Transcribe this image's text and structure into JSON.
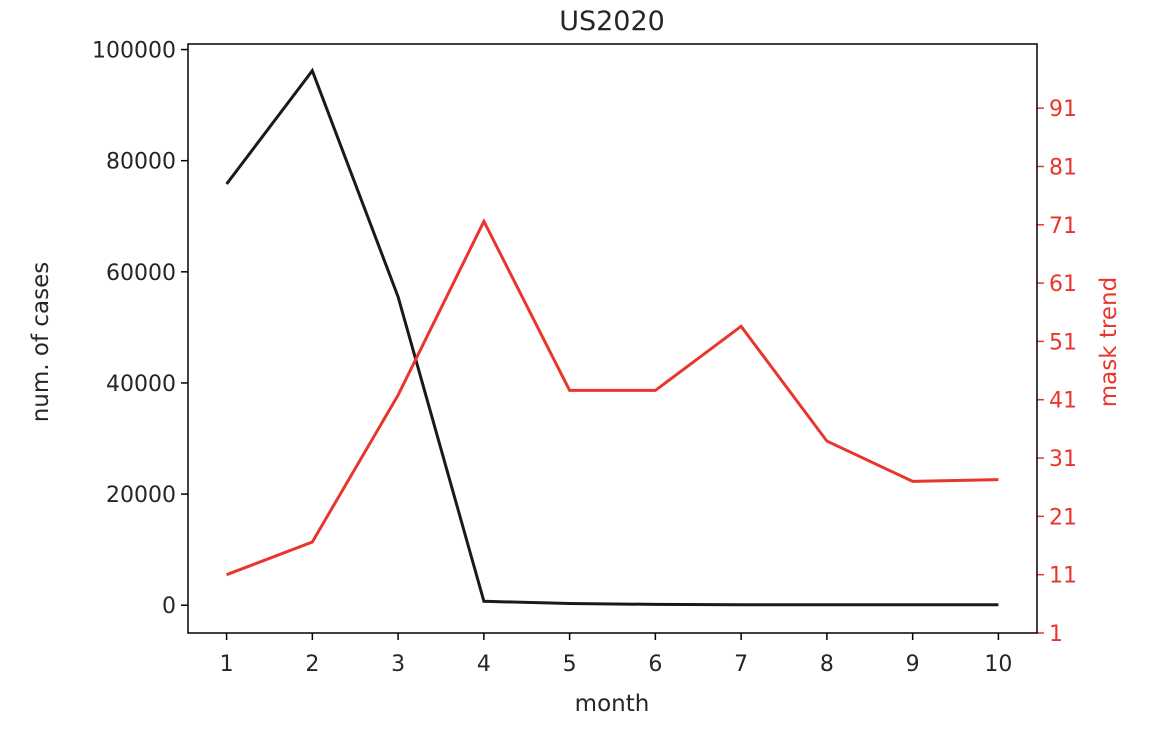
{
  "chart_data": {
    "type": "line",
    "title": "US2020",
    "xlabel": "month",
    "ylabel": "num. of cases",
    "y2label": "mask trend",
    "x": [
      1,
      2,
      3,
      4,
      5,
      6,
      7,
      8,
      9,
      10
    ],
    "xticks": [
      "1",
      "2",
      "3",
      "4",
      "5",
      "6",
      "7",
      "8",
      "9",
      "10"
    ],
    "xlim": [
      0.55,
      10.45
    ],
    "ylim": [
      -5000,
      101000
    ],
    "yticks": [
      0,
      20000,
      40000,
      60000,
      80000,
      100000
    ],
    "y2lim": [
      1,
      102
    ],
    "y2ticks": [
      1,
      11,
      21,
      31,
      41,
      51,
      61,
      71,
      81,
      91
    ],
    "grid": false,
    "series": [
      {
        "axis": "left",
        "color": "#1a1a1a",
        "values": [
          75800,
          96200,
          55500,
          700,
          300,
          150,
          100,
          100,
          100,
          100
        ]
      },
      {
        "axis": "right",
        "color": "#e8362d",
        "values": [
          11.0,
          16.6,
          41.8,
          71.6,
          42.6,
          42.6,
          53.6,
          33.9,
          27.0,
          27.3
        ]
      }
    ],
    "colors": {
      "axis": "#000000",
      "left_text": "#262626",
      "right_text": "#e8362d"
    }
  }
}
